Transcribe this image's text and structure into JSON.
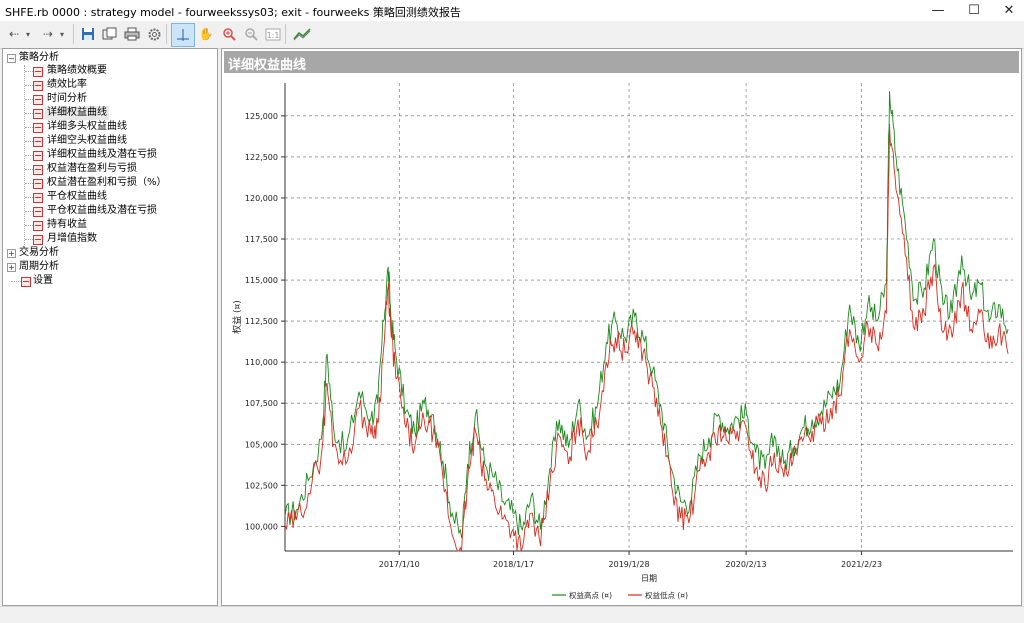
{
  "window": {
    "title": "SHFE.rb 0000 : strategy model - fourweekssys03; exit - fourweeks 策略回测绩效报告",
    "minimize": "—",
    "maximize": "☐",
    "close": "✕"
  },
  "toolbar": {
    "icons": [
      "back-icon",
      "dropdown-icon",
      "forward-icon",
      "dropdown-icon",
      "save-icon",
      "copy-icon",
      "print-icon",
      "settings-icon",
      "crosshair-icon",
      "pan-hand-icon",
      "zoom-in-icon",
      "zoom-out-icon",
      "zoom-fit-icon",
      "chart-style-icon"
    ]
  },
  "tree": {
    "root1": "策略分析",
    "items": [
      "策略绩效概要",
      "绩效比率",
      "时间分析",
      "详细权益曲线",
      "详细多头权益曲线",
      "详细空头权益曲线",
      "详细权益曲线及潜在亏损",
      "权益潜在盈利与亏损",
      "权益潜在盈利和亏损（%）",
      "平仓权益曲线",
      "平仓权益曲线及潜在亏损",
      "持有收益",
      "月增值指数"
    ],
    "selected_index": 3,
    "root2": "交易分析",
    "root3": "周期分析",
    "settings": "设置"
  },
  "panel": {
    "header": "详细权益曲线"
  },
  "chart_data": {
    "type": "line",
    "ylabel": "权益 (¤)",
    "xlabel": "日期",
    "ylim": [
      98500,
      127000
    ],
    "yticks": [
      100000,
      102500,
      105000,
      107500,
      110000,
      112500,
      115000,
      117500,
      120000,
      122500,
      125000
    ],
    "ytick_labels": [
      "100,000",
      "102,500",
      "105,000",
      "107,500",
      "110,000",
      "112,500",
      "115,000",
      "117,500",
      "120,000",
      "122,500",
      "125,000"
    ],
    "xlim": [
      "2016-01-04",
      "2022-07-01"
    ],
    "xticks": [
      "2017-01-10",
      "2018-01-17",
      "2019-01-28",
      "2020-02-13",
      "2021-02-23"
    ],
    "xtick_labels": [
      "2017/1/10",
      "2018/1/17",
      "2019/1/28",
      "2020/2/13",
      "2021/2/23"
    ],
    "grid": true,
    "legend_position": "bottom-center",
    "series": [
      {
        "name": "权益高点 (¤)",
        "color": "#1a8a1a",
        "x": [
          "2016-01-04",
          "2016-02-10",
          "2016-03-20",
          "2016-05-01",
          "2016-05-20",
          "2016-06-10",
          "2016-07-20",
          "2016-09-01",
          "2016-10-10",
          "2016-11-01",
          "2016-11-20",
          "2016-12-05",
          "2016-12-15",
          "2017-01-01",
          "2017-02-01",
          "2017-03-01",
          "2017-04-01",
          "2017-05-01",
          "2017-06-01",
          "2017-07-01",
          "2017-08-01",
          "2017-08-20",
          "2017-09-15",
          "2017-10-15",
          "2017-11-15",
          "2017-12-15",
          "2018-01-15",
          "2018-02-15",
          "2018-03-15",
          "2018-04-15",
          "2018-05-15",
          "2018-06-15",
          "2018-07-15",
          "2018-08-15",
          "2018-09-15",
          "2018-10-15",
          "2018-11-15",
          "2018-12-15",
          "2019-01-15",
          "2019-02-15",
          "2019-03-15",
          "2019-04-15",
          "2019-05-15",
          "2019-06-15",
          "2019-07-15",
          "2019-08-15",
          "2019-09-15",
          "2019-10-15",
          "2019-11-15",
          "2019-12-15",
          "2020-01-15",
          "2020-02-15",
          "2020-03-15",
          "2020-04-15",
          "2020-05-15",
          "2020-06-15",
          "2020-07-15",
          "2020-08-15",
          "2020-09-15",
          "2020-10-15",
          "2020-11-15",
          "2020-12-15",
          "2021-01-15",
          "2021-02-15",
          "2021-03-15",
          "2021-04-15",
          "2021-05-15",
          "2021-05-25",
          "2021-06-15",
          "2021-07-15",
          "2021-08-15",
          "2021-09-15",
          "2021-10-15",
          "2021-11-15",
          "2021-12-15",
          "2022-01-15",
          "2022-02-15",
          "2022-03-15",
          "2022-04-15",
          "2022-05-15",
          "2022-06-15"
        ],
        "values": [
          100600,
          101000,
          102800,
          105300,
          110500,
          106000,
          104600,
          108200,
          106600,
          107500,
          112500,
          115800,
          112500,
          110200,
          107000,
          105800,
          107500,
          106800,
          104000,
          100800,
          99300,
          103800,
          106800,
          103800,
          103000,
          101500,
          100800,
          99800,
          101800,
          99800,
          103500,
          106500,
          104800,
          107500,
          105500,
          107200,
          111200,
          112500,
          111500,
          112800,
          111500,
          109500,
          107000,
          103500,
          101500,
          101500,
          104300,
          105400,
          106800,
          106000,
          106600,
          106800,
          104500,
          103500,
          105500,
          103800,
          104800,
          106000,
          106500,
          107000,
          108000,
          108800,
          113500,
          111000,
          113500,
          112500,
          114800,
          126500,
          122500,
          118500,
          113800,
          114500,
          117500,
          113500,
          113000,
          116500,
          113800,
          114800,
          112500,
          113500,
          112000
        ],
        "seed": 17
      },
      {
        "name": "权益低点 (¤)",
        "color": "#d92b1e",
        "x": [
          "2016-01-04",
          "2016-02-10",
          "2016-03-20",
          "2016-05-01",
          "2016-05-20",
          "2016-06-10",
          "2016-07-20",
          "2016-09-01",
          "2016-10-10",
          "2016-11-01",
          "2016-11-20",
          "2016-12-05",
          "2016-12-15",
          "2017-01-01",
          "2017-02-01",
          "2017-03-01",
          "2017-04-01",
          "2017-05-01",
          "2017-06-01",
          "2017-07-01",
          "2017-08-01",
          "2017-08-20",
          "2017-09-15",
          "2017-10-15",
          "2017-11-15",
          "2017-12-15",
          "2018-01-15",
          "2018-02-15",
          "2018-03-15",
          "2018-04-15",
          "2018-05-15",
          "2018-06-15",
          "2018-07-15",
          "2018-08-15",
          "2018-09-15",
          "2018-10-15",
          "2018-11-15",
          "2018-12-15",
          "2019-01-15",
          "2019-02-15",
          "2019-03-15",
          "2019-04-15",
          "2019-05-15",
          "2019-06-15",
          "2019-07-15",
          "2019-08-15",
          "2019-09-15",
          "2019-10-15",
          "2019-11-15",
          "2019-12-15",
          "2020-01-15",
          "2020-02-15",
          "2020-03-15",
          "2020-04-15",
          "2020-05-15",
          "2020-06-15",
          "2020-07-15",
          "2020-08-15",
          "2020-09-15",
          "2020-10-15",
          "2020-11-15",
          "2020-12-15",
          "2021-01-15",
          "2021-02-15",
          "2021-03-15",
          "2021-04-15",
          "2021-05-15",
          "2021-05-25",
          "2021-06-15",
          "2021-07-15",
          "2021-08-15",
          "2021-09-15",
          "2021-10-15",
          "2021-11-15",
          "2021-12-15",
          "2022-01-15",
          "2022-02-15",
          "2022-03-15",
          "2022-04-15",
          "2022-05-15",
          "2022-06-15"
        ],
        "values": [
          100000,
          100400,
          102000,
          104300,
          108700,
          105000,
          103800,
          107200,
          105600,
          106300,
          110800,
          114600,
          111500,
          109000,
          106000,
          104800,
          106500,
          105800,
          103000,
          99500,
          98500,
          102700,
          105800,
          102800,
          101800,
          100500,
          99800,
          98700,
          100800,
          98800,
          102500,
          105500,
          103800,
          106500,
          104500,
          106200,
          110000,
          111500,
          110600,
          111900,
          110600,
          108500,
          106000,
          102500,
          100500,
          100600,
          103400,
          104500,
          105900,
          105200,
          105800,
          105900,
          103500,
          102500,
          104500,
          103000,
          104000,
          105200,
          105800,
          106200,
          107200,
          108000,
          112000,
          110000,
          112300,
          111000,
          113000,
          124500,
          120500,
          116500,
          112000,
          113000,
          115800,
          111800,
          111500,
          114500,
          112000,
          113000,
          110800,
          112000,
          110500
        ],
        "seed": 29
      }
    ]
  },
  "statusbar": ""
}
